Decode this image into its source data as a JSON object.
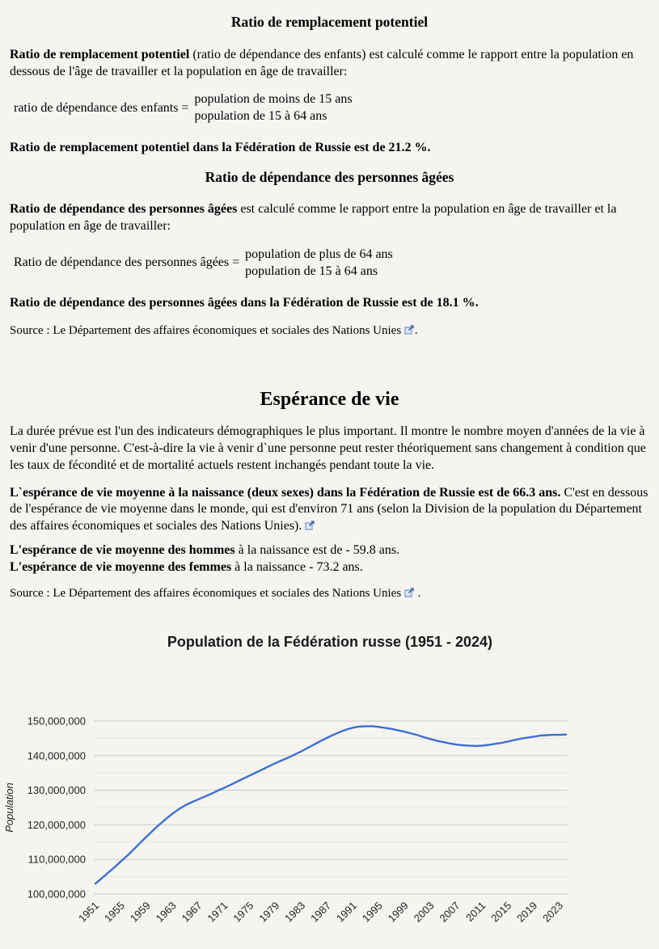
{
  "page": {
    "background": "#f5f4f1",
    "link_icon_color": "#5b82c4"
  },
  "sections": {
    "replacement": {
      "heading": "Ratio de remplacement potentiel",
      "para_bold": "Ratio de remplacement potentiel",
      "para_rest": " (ratio de dépendance des enfants) est calculé comme le rapport entre la population en dessous de l'âge de travailler et la population en âge de travailler:",
      "formula_label": "ratio de dépendance des enfants =",
      "formula_numerator": "population de moins de 15 ans",
      "formula_denominator": "population de 15 à 64 ans",
      "result": "Ratio de remplacement potentiel dans la Fédération de Russie est de 21.2 %."
    },
    "elderly": {
      "heading": "Ratio de dépendance des personnes âgées",
      "para_bold": "Ratio de dépendance des personnes âgées",
      "para_rest": " est calculé comme le rapport entre la population en âge de travailler et la population en âge de travailler:",
      "formula_label": "Ratio de dépendance des personnes âgées =",
      "formula_numerator": "population de plus de 64 ans",
      "formula_denominator": "population de 15 à 64 ans",
      "result": "Ratio de dépendance des personnes âgées dans la Fédération de Russie est de 18.1 %.",
      "source_prefix": "Source : ",
      "source_link": "Le Département des affaires économiques et sociales des Nations Unies",
      "source_suffix": "."
    },
    "life": {
      "heading": "Espérance de vie",
      "para1": "La durée prévue est l'un des indicateurs démographiques le plus important. Il montre le nombre moyen d'années de la vie à venir d'une personne. C'est-à-dire la vie à venir d`une personne peut rester théoriquement sans changement à condition que les taux de fécondité et de mortalité actuels restent inchangés pendant toute la vie.",
      "para2_bold": "L`espérance de vie moyenne à la naissance (deux sexes) dans la Fédération de Russie est de 66.3 ans.",
      "para2_rest": " C'est en dessous de l'espérance de vie moyenne dans le monde, qui est d'environ 71 ans (selon la Division de la population du Département des affaires économiques et sociales des Nations Unies). ",
      "men_bold": "L'espérance de vie moyenne des hommes",
      "men_rest": " à la naissance est de - 59.8 ans.",
      "women_bold": "L'espérance de vie moyenne des femmes",
      "women_rest": " à la naissance - 73.2 ans.",
      "source_prefix": "Source : ",
      "source_link": "Le Département des affaires économiques et sociales des Nations Unies",
      "source_suffix": " ."
    }
  },
  "chart_data": {
    "type": "line",
    "title": "Population de la Fédération russe (1951 - 2024)",
    "xlabel": "",
    "ylabel": "Population",
    "legend": "none",
    "grid": true,
    "line_color": "#3d6fd1",
    "grid_major_color": "#c9c9c9",
    "grid_minor_color": "#e6e6e3",
    "ylim": [
      100000000,
      150000000
    ],
    "x_range": [
      1951,
      2024
    ],
    "x_ticks": [
      1951,
      1955,
      1959,
      1963,
      1967,
      1971,
      1975,
      1979,
      1983,
      1987,
      1991,
      1995,
      1999,
      2003,
      2007,
      2011,
      2015,
      2019,
      2023
    ],
    "y_ticks": [
      {
        "value": 150000000,
        "label": "150,000,000"
      },
      {
        "value": 140000000,
        "label": "140,000,000"
      },
      {
        "value": 130000000,
        "label": "130,000,000"
      },
      {
        "value": 120000000,
        "label": "120,000,000"
      },
      {
        "value": 110000000,
        "label": "110,000,000"
      },
      {
        "value": 100000000,
        "label": "100,000,000"
      }
    ],
    "years": [
      1951,
      1952,
      1953,
      1954,
      1955,
      1956,
      1957,
      1958,
      1959,
      1960,
      1961,
      1962,
      1963,
      1964,
      1965,
      1966,
      1967,
      1968,
      1969,
      1970,
      1971,
      1972,
      1973,
      1974,
      1975,
      1976,
      1977,
      1978,
      1979,
      1980,
      1981,
      1982,
      1983,
      1984,
      1985,
      1986,
      1987,
      1988,
      1989,
      1990,
      1991,
      1992,
      1993,
      1994,
      1995,
      1996,
      1997,
      1998,
      1999,
      2000,
      2001,
      2002,
      2003,
      2004,
      2005,
      2006,
      2007,
      2008,
      2009,
      2010,
      2011,
      2012,
      2013,
      2014,
      2015,
      2016,
      2017,
      2018,
      2019,
      2020,
      2021,
      2022,
      2023,
      2024
    ],
    "values": [
      103000000,
      104600000,
      106200000,
      107800000,
      109500000,
      111200000,
      113000000,
      114900000,
      116700000,
      118500000,
      120200000,
      121800000,
      123300000,
      124600000,
      125700000,
      126600000,
      127400000,
      128200000,
      129000000,
      129900000,
      130700000,
      131600000,
      132500000,
      133400000,
      134300000,
      135200000,
      136100000,
      137000000,
      137900000,
      138700000,
      139500000,
      140400000,
      141300000,
      142300000,
      143300000,
      144300000,
      145200000,
      146100000,
      146900000,
      147600000,
      148100000,
      148400000,
      148500000,
      148500000,
      148300000,
      148000000,
      147700000,
      147300000,
      146900000,
      146400000,
      145900000,
      145300000,
      144800000,
      144300000,
      143900000,
      143500000,
      143200000,
      143000000,
      142900000,
      142800000,
      142900000,
      143100000,
      143400000,
      143700000,
      144100000,
      144500000,
      144900000,
      145200000,
      145500000,
      145800000,
      145900000,
      146000000,
      146000000,
      146100000
    ]
  }
}
